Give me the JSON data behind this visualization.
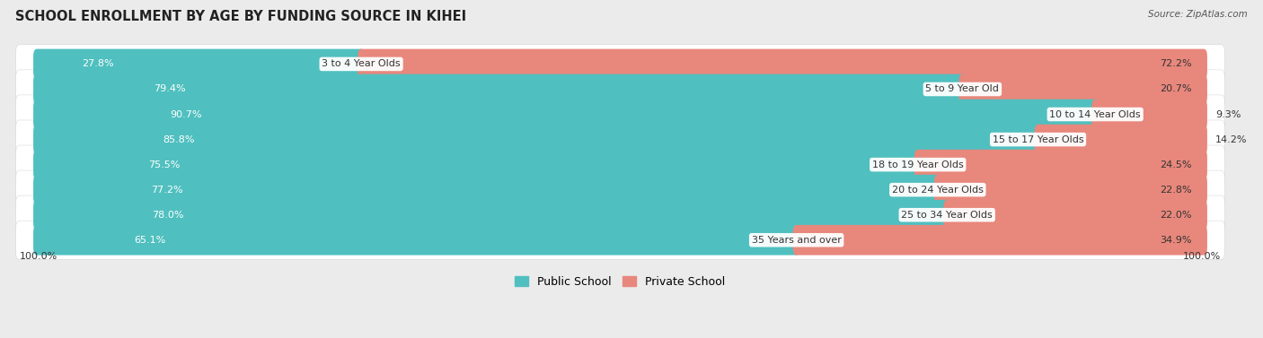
{
  "title": "SCHOOL ENROLLMENT BY AGE BY FUNDING SOURCE IN KIHEI",
  "source": "Source: ZipAtlas.com",
  "categories": [
    "3 to 4 Year Olds",
    "5 to 9 Year Old",
    "10 to 14 Year Olds",
    "15 to 17 Year Olds",
    "18 to 19 Year Olds",
    "20 to 24 Year Olds",
    "25 to 34 Year Olds",
    "35 Years and over"
  ],
  "public_values": [
    27.8,
    79.4,
    90.7,
    85.8,
    75.5,
    77.2,
    78.0,
    65.1
  ],
  "private_values": [
    72.2,
    20.7,
    9.3,
    14.2,
    24.5,
    22.8,
    22.0,
    34.9
  ],
  "public_color": "#50bfbf",
  "private_color": "#e8877c",
  "background_color": "#ebebeb",
  "row_bg_color": "#ffffff",
  "title_fontsize": 10.5,
  "label_fontsize": 8,
  "value_fontsize": 8,
  "legend_fontsize": 9,
  "axis_label_fontsize": 8,
  "left_axis_label": "100.0%",
  "right_axis_label": "100.0%"
}
